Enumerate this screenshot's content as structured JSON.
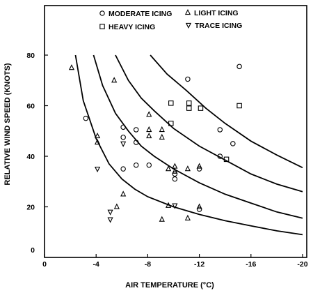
{
  "chart_data": {
    "type": "scatter",
    "xlabel": "AIR TEMPERATURE (°C)",
    "ylabel": "RELATIVE WIND SPEED (KNOTS)",
    "xlim": [
      0,
      -20
    ],
    "ylim": [
      0,
      90
    ],
    "x_ticks": [
      {
        "value": 0,
        "label": "0"
      },
      {
        "value": -4,
        "label": "-4"
      },
      {
        "value": -8,
        "label": "-8"
      },
      {
        "value": -12,
        "label": "-12"
      },
      {
        "value": -16,
        "label": "-16"
      },
      {
        "value": -20,
        "label": "-20"
      }
    ],
    "y_ticks": [
      {
        "value": 0,
        "label": "0"
      },
      {
        "value": 20,
        "label": "20"
      },
      {
        "value": 40,
        "label": "40"
      },
      {
        "value": 60,
        "label": "60"
      },
      {
        "value": 80,
        "label": "80"
      }
    ],
    "legend": {
      "placement": "top",
      "entries": [
        {
          "series": "moderate",
          "label": "MODERATE ICING"
        },
        {
          "series": "light",
          "label": "LIGHT ICING"
        },
        {
          "series": "heavy",
          "label": "HEAVY ICING"
        },
        {
          "series": "trace",
          "label": "TRACE ICING"
        }
      ]
    },
    "series": [
      {
        "key": "moderate",
        "name": "MODERATE ICING",
        "marker": "circle",
        "points": [
          [
            -3.2,
            55
          ],
          [
            -6.1,
            51.5
          ],
          [
            -7.1,
            50.5
          ],
          [
            -6.1,
            47.5
          ],
          [
            -7.1,
            45.5
          ],
          [
            -6.1,
            35
          ],
          [
            -7.1,
            36.5
          ],
          [
            -8.1,
            36.5
          ],
          [
            -10.1,
            33
          ],
          [
            -10.1,
            31
          ],
          [
            -11.1,
            70.5
          ],
          [
            -12,
            35
          ],
          [
            -12,
            19
          ],
          [
            -13.6,
            50.5
          ],
          [
            -13.6,
            40
          ],
          [
            -14.6,
            45
          ],
          [
            -15.1,
            75.5
          ]
        ]
      },
      {
        "key": "light",
        "name": "LIGHT ICING",
        "marker": "triangle-up",
        "points": [
          [
            -2.1,
            75
          ],
          [
            -4.1,
            48
          ],
          [
            -4.1,
            45.5
          ],
          [
            -5.4,
            70
          ],
          [
            -6.1,
            25
          ],
          [
            -5.6,
            20
          ],
          [
            -8.1,
            56.5
          ],
          [
            -8.1,
            50.5
          ],
          [
            -8.1,
            48
          ],
          [
            -9.1,
            50.5
          ],
          [
            -9.1,
            47.5
          ],
          [
            -9.6,
            35
          ],
          [
            -9.6,
            20.5
          ],
          [
            -10.1,
            36
          ],
          [
            -10.1,
            34
          ],
          [
            -11.1,
            35
          ],
          [
            -11.1,
            15.5
          ],
          [
            -12,
            36
          ],
          [
            -12,
            20
          ],
          [
            -9.1,
            15
          ]
        ]
      },
      {
        "key": "heavy",
        "name": "HEAVY ICING",
        "marker": "square",
        "points": [
          [
            -9.8,
            61
          ],
          [
            -9.8,
            53
          ],
          [
            -11.2,
            61
          ],
          [
            -11.2,
            59
          ],
          [
            -12.1,
            59
          ],
          [
            -14.1,
            38.8
          ],
          [
            -15.1,
            60
          ]
        ]
      },
      {
        "key": "trace",
        "name": "TRACE ICING",
        "marker": "triangle-down",
        "points": [
          [
            -4.1,
            35
          ],
          [
            -5.1,
            18
          ],
          [
            -5.1,
            15
          ],
          [
            -6.1,
            45
          ],
          [
            -10.1,
            20.5
          ]
        ]
      }
    ],
    "curves": [
      {
        "points": [
          [
            -2.4,
            80
          ],
          [
            -3,
            62
          ],
          [
            -4,
            47
          ],
          [
            -5,
            37
          ],
          [
            -6,
            31
          ],
          [
            -7,
            27
          ],
          [
            -8,
            24
          ],
          [
            -10,
            20
          ],
          [
            -12,
            17
          ],
          [
            -14,
            14.5
          ],
          [
            -16,
            12.5
          ],
          [
            -18,
            10.5
          ],
          [
            -20,
            9
          ]
        ]
      },
      {
        "points": [
          [
            -3.8,
            80
          ],
          [
            -4.5,
            68
          ],
          [
            -5.5,
            57
          ],
          [
            -6.5,
            50
          ],
          [
            -7.5,
            44
          ],
          [
            -8.5,
            40
          ],
          [
            -10,
            35
          ],
          [
            -12,
            29.5
          ],
          [
            -14,
            25
          ],
          [
            -16,
            21.5
          ],
          [
            -18,
            18
          ],
          [
            -20,
            15.5
          ]
        ]
      },
      {
        "points": [
          [
            -5.5,
            80
          ],
          [
            -6.5,
            70
          ],
          [
            -7.5,
            63
          ],
          [
            -8.5,
            58
          ],
          [
            -10,
            51
          ],
          [
            -12,
            44
          ],
          [
            -14,
            38.5
          ],
          [
            -16,
            33
          ],
          [
            -18,
            29
          ],
          [
            -20,
            26
          ]
        ]
      },
      {
        "points": [
          [
            -8.2,
            80
          ],
          [
            -9.5,
            72.5
          ],
          [
            -11,
            66
          ],
          [
            -12.5,
            59
          ],
          [
            -14,
            53
          ],
          [
            -16,
            46
          ],
          [
            -18,
            40.5
          ],
          [
            -20,
            35.5
          ]
        ]
      }
    ]
  }
}
